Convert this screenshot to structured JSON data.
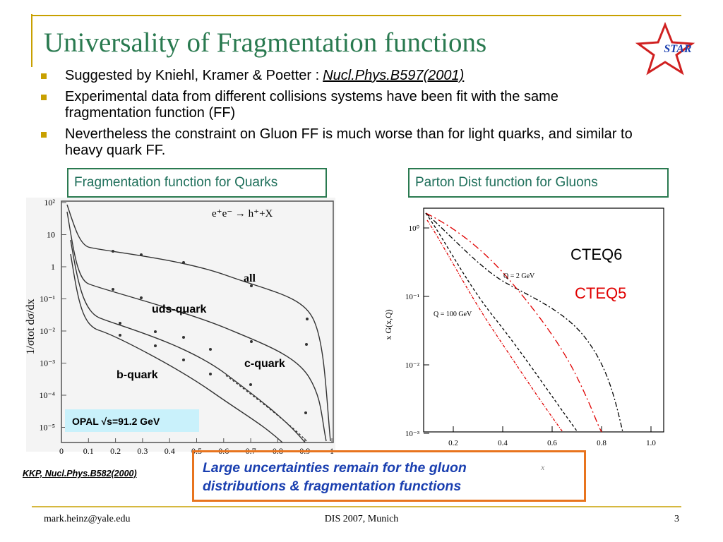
{
  "header": {
    "title": "Universality of Fragmentation functions"
  },
  "logo": {
    "text": "STAR"
  },
  "bullets": [
    {
      "text": "Suggested by Kniehl, Kramer & Poetter :",
      "reference": "Nucl.Phys.B597(2001)"
    },
    {
      "text": "Experimental data from different collisions systems have been fit with the same fragmentation function (FF)"
    },
    {
      "text": "Nevertheless the constraint on Gluon FF is much worse than for light quarks, and similar to heavy quark FF."
    }
  ],
  "left_plot": {
    "title_box": "Fragmentation function for Quarks",
    "annotation": "e⁺e⁻ → h⁺+X",
    "y_axis_label": "1/σtot dσ/dx",
    "x_ticks": [
      "0",
      "0.1",
      "0.2",
      "0.3",
      "0.4",
      "0.5",
      "0.6",
      "0.7",
      "0.8",
      "0.9",
      "1"
    ],
    "y_ticks": [
      "10²",
      "10",
      "1",
      "10⁻¹",
      "10⁻²",
      "10⁻³",
      "10⁻⁴",
      "10⁻⁵"
    ],
    "curve_labels": [
      "all",
      "uds-quark",
      "c-quark",
      "b-quark"
    ],
    "legend": "OPAL √s=91.2 GeV",
    "source": "KKP, Nucl.Phys.B582(2000)"
  },
  "right_plot": {
    "title_box": "Parton Dist function for Gluons",
    "y_axis_label": "x G(x,Q)",
    "x_axis_label": "x",
    "x_ticks": [
      "0.2",
      "0.4",
      "0.6",
      "0.8",
      "1.0"
    ],
    "y_ticks": [
      "10⁰",
      "10⁻¹",
      "10⁻²",
      "10⁻³"
    ],
    "annotations": [
      "Q = 2 GeV",
      "Q = 100 GeV"
    ],
    "series": [
      {
        "name": "CTEQ6",
        "color": "#000000"
      },
      {
        "name": "CTEQ5",
        "color": "#e00000"
      }
    ]
  },
  "callout": {
    "lines": [
      "Large uncertainties remain for the gluon",
      "distributions & fragmentation functions"
    ]
  },
  "footer": {
    "left": "mark.heinz@yale.edu",
    "center": "DIS 2007, Munich",
    "right": "3"
  }
}
